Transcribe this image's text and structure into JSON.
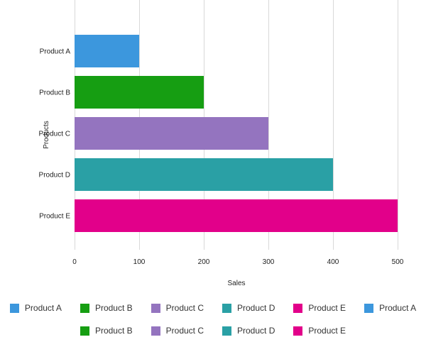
{
  "chart_data": {
    "type": "bar",
    "orientation": "horizontal",
    "categories": [
      "Product A",
      "Product B",
      "Product C",
      "Product D",
      "Product E"
    ],
    "values": [
      100,
      200,
      300,
      400,
      500
    ],
    "colors": [
      "#3c97dd",
      "#169e12",
      "#9474bf",
      "#2aa0a5",
      "#e2008a"
    ],
    "xlabel": "Sales",
    "ylabel": "Products",
    "xlim": [
      0,
      500
    ],
    "xticks": [
      0,
      100,
      200,
      300,
      400,
      500
    ],
    "grid": "vertical",
    "legend_position": "bottom",
    "legend": [
      [
        "Product A",
        "Product B",
        "Product C",
        "Product D",
        "Product E",
        "Product A"
      ],
      [
        "Product B",
        "Product C",
        "Product D",
        "Product E"
      ]
    ]
  }
}
